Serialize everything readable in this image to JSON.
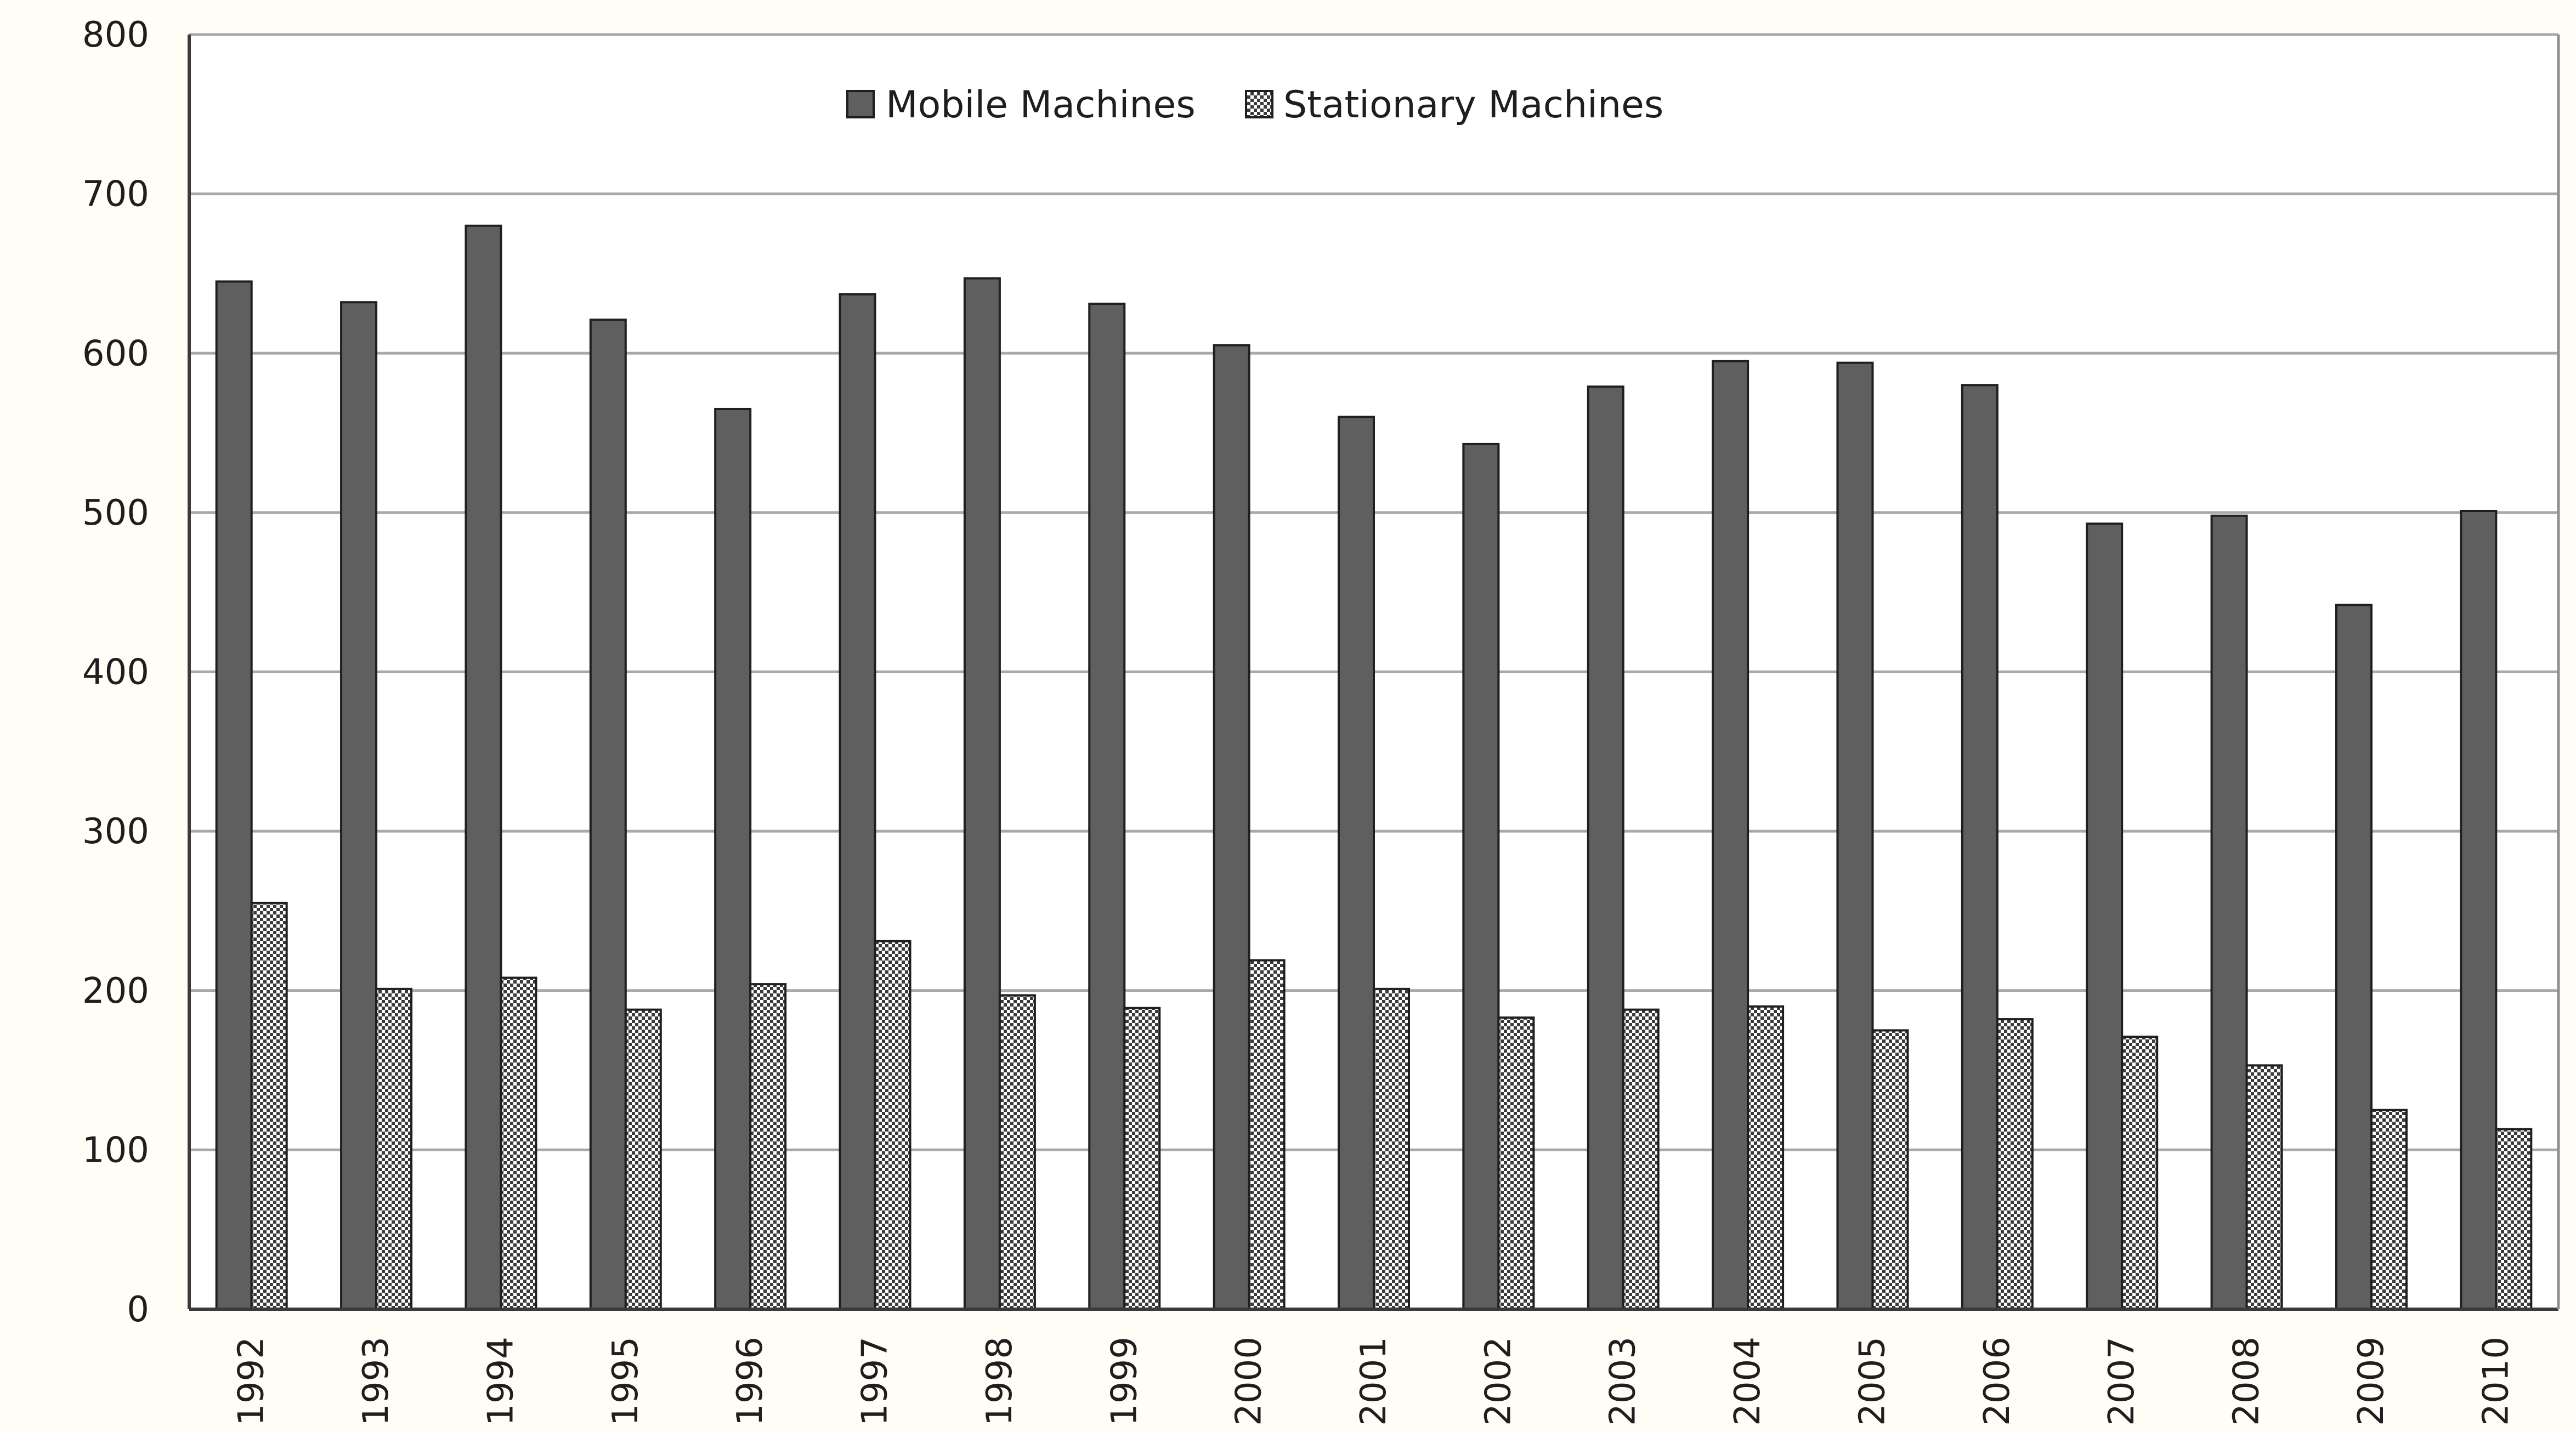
{
  "chart_data": {
    "type": "bar",
    "categories": [
      "1992",
      "1993",
      "1994",
      "1995",
      "1996",
      "1997",
      "1998",
      "1999",
      "2000",
      "2001",
      "2002",
      "2003",
      "2004",
      "2005",
      "2006",
      "2007",
      "2008",
      "2009",
      "2010"
    ],
    "series": [
      {
        "name": "Mobile Machines",
        "values": [
          645,
          632,
          680,
          621,
          565,
          637,
          647,
          631,
          605,
          560,
          543,
          579,
          595,
          594,
          580,
          493,
          498,
          442,
          501
        ],
        "color": "#5f5f5f",
        "pattern": "solid"
      },
      {
        "name": "Stationary Machines",
        "values": [
          255,
          201,
          208,
          188,
          204,
          231,
          197,
          189,
          219,
          201,
          183,
          188,
          190,
          175,
          182,
          171,
          153,
          125,
          113
        ],
        "color": "#ffffff",
        "pattern": "checkered"
      }
    ],
    "yticks": [
      0,
      100,
      200,
      300,
      400,
      500,
      600,
      700,
      800
    ],
    "ylim": [
      0,
      800
    ],
    "grid": true,
    "legend_position": "top-center",
    "xtick_rotation": -90,
    "title": "",
    "xlabel": "",
    "ylabel": ""
  }
}
